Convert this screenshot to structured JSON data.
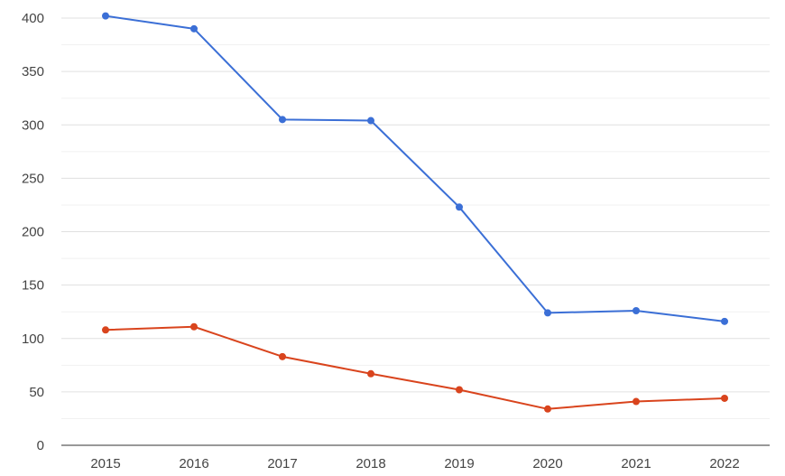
{
  "chart_data": {
    "type": "line",
    "title": "",
    "xlabel": "",
    "ylabel": "",
    "categories": [
      "2015",
      "2016",
      "2017",
      "2018",
      "2019",
      "2020",
      "2021",
      "2022"
    ],
    "ylim": [
      0,
      400
    ],
    "y_ticks": [
      "0",
      "50",
      "100",
      "150",
      "200",
      "250",
      "300",
      "350",
      "400"
    ],
    "grid": true,
    "legend": "none",
    "series": [
      {
        "color": "#3b6fd6",
        "values": [
          402,
          390,
          305,
          304,
          223,
          124,
          126,
          116
        ]
      },
      {
        "color": "#d9441d",
        "values": [
          108,
          111,
          83,
          67,
          52,
          34,
          41,
          44
        ]
      }
    ]
  }
}
